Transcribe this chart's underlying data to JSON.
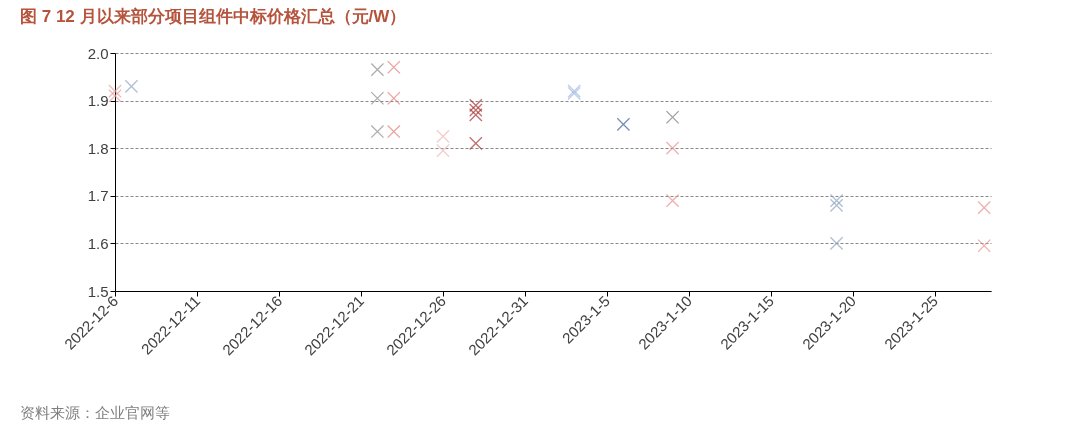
{
  "chart_data": {
    "type": "scatter",
    "title": "图 7 12 月以来部分项目组件中标价格汇总（元/W）",
    "annotations": [
      "资料来源：企业官网等"
    ],
    "marker": "cross",
    "grid": "y",
    "legend": false,
    "xlim": [
      "2022-12-06",
      "2023-01-28T10:00"
    ],
    "xticks": [
      {
        "value": "2022-12-06",
        "label": "2022-12-6"
      },
      {
        "value": "2022-12-11",
        "label": "2022-12-11"
      },
      {
        "value": "2022-12-16",
        "label": "2022-12-16"
      },
      {
        "value": "2022-12-21",
        "label": "2022-12-21"
      },
      {
        "value": "2022-12-26",
        "label": "2022-12-26"
      },
      {
        "value": "2022-12-31",
        "label": "2022-12-31"
      },
      {
        "value": "2023-01-05",
        "label": "2023-1-5"
      },
      {
        "value": "2023-01-10",
        "label": "2023-1-10"
      },
      {
        "value": "2023-01-15",
        "label": "2023-1-15"
      },
      {
        "value": "2023-01-20",
        "label": "2023-1-20"
      },
      {
        "value": "2023-01-25",
        "label": "2023-1-25"
      }
    ],
    "ylim": [
      1.5,
      2.0
    ],
    "yticks": [
      {
        "value": 1.5,
        "label": "1.5"
      },
      {
        "value": 1.6,
        "label": "1.6"
      },
      {
        "value": 1.7,
        "label": "1.7"
      },
      {
        "value": 1.8,
        "label": "1.8"
      },
      {
        "value": 1.9,
        "label": "1.9"
      },
      {
        "value": 2.0,
        "label": "2.0"
      }
    ],
    "series": [
      {
        "color": "#e8a0a0",
        "x": [
          "2022-12-06",
          "2022-12-06"
        ],
        "values": [
          1.92,
          1.91
        ]
      },
      {
        "color": "#8fa3c0",
        "x": [
          "2022-12-07"
        ],
        "values": [
          1.93
        ]
      },
      {
        "color": "#8c8c8c",
        "x": [
          "2022-12-22",
          "2022-12-22",
          "2022-12-22"
        ],
        "values": [
          1.965,
          1.905,
          1.835
        ]
      },
      {
        "color": "#e07b7b",
        "x": [
          "2022-12-23",
          "2022-12-23",
          "2022-12-23"
        ],
        "values": [
          1.97,
          1.905,
          1.835
        ]
      },
      {
        "color": "#f0b8b8",
        "x": [
          "2022-12-26",
          "2022-12-26"
        ],
        "values": [
          1.825,
          1.795
        ]
      },
      {
        "color": "#a83232",
        "x": [
          "2022-12-28",
          "2022-12-28",
          "2022-12-28",
          "2022-12-28"
        ],
        "values": [
          1.89,
          1.88,
          1.87,
          1.81
        ]
      },
      {
        "color": "#9db6e0",
        "x": [
          "2023-01-03",
          "2023-01-03"
        ],
        "values": [
          1.92,
          1.915
        ]
      },
      {
        "color": "#3d5f9a",
        "x": [
          "2023-01-06"
        ],
        "values": [
          1.85
        ]
      },
      {
        "color": "#777777",
        "x": [
          "2023-01-09"
        ],
        "values": [
          1.865
        ]
      },
      {
        "color": "#e89090",
        "x": [
          "2023-01-09",
          "2023-01-09"
        ],
        "values": [
          1.8,
          1.69
        ]
      },
      {
        "color": "#8fa3c0",
        "x": [
          "2023-01-19",
          "2023-01-19",
          "2023-01-19"
        ],
        "values": [
          1.69,
          1.68,
          1.6
        ]
      },
      {
        "color": "#e89090",
        "x": [
          "2023-01-28",
          "2023-01-28"
        ],
        "values": [
          1.675,
          1.595
        ]
      }
    ]
  }
}
